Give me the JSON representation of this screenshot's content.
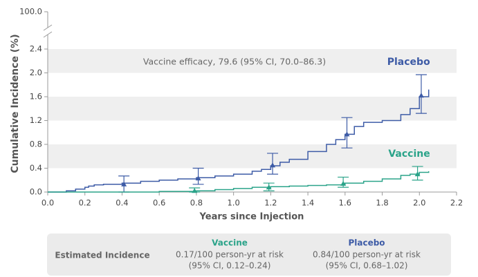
{
  "chart_data": {
    "type": "line",
    "ylabel": "Cumulative Incidence (%)",
    "xlabel": "Years since Injection",
    "annotation": "Vaccine efficacy, 79.6 (95% CI, 70.0–86.3)",
    "xlim": [
      0,
      2.2
    ],
    "xticks": [
      {
        "value": 0,
        "label": "0.0"
      },
      0.2,
      0.4,
      0.6,
      0.8,
      {
        "value": 1,
        "label": "1.0"
      },
      1.2,
      1.4,
      1.6,
      1.8,
      {
        "value": 2,
        "label": "2.0"
      },
      2.2
    ],
    "ylim": [
      0,
      2.4
    ],
    "yticks": [
      {
        "value": 0,
        "label": "0.0"
      },
      0.4,
      0.8,
      1.2,
      1.6,
      {
        "value": 2,
        "label": "2.0"
      },
      2.4,
      {
        "value": 100,
        "label": "100.0"
      }
    ],
    "bands": true,
    "series": [
      {
        "name": "Placebo",
        "color": "#3d5ba6",
        "x": [
          0,
          0.1,
          0.15,
          0.2,
          0.22,
          0.25,
          0.3,
          0.4,
          0.5,
          0.6,
          0.7,
          0.8,
          0.9,
          1.0,
          1.1,
          1.15,
          1.2,
          1.25,
          1.3,
          1.4,
          1.5,
          1.55,
          1.6,
          1.65,
          1.7,
          1.8,
          1.9,
          1.95,
          2.0,
          2.05
        ],
        "values": [
          0,
          0.02,
          0.05,
          0.08,
          0.1,
          0.12,
          0.13,
          0.15,
          0.18,
          0.2,
          0.22,
          0.24,
          0.27,
          0.3,
          0.35,
          0.38,
          0.44,
          0.5,
          0.55,
          0.68,
          0.8,
          0.88,
          0.97,
          1.1,
          1.17,
          1.2,
          1.3,
          1.4,
          1.6,
          1.72
        ],
        "error_bars": {
          "x": [
            0.41,
            0.81,
            1.21,
            1.61,
            2.01
          ],
          "values": [
            0.13,
            0.23,
            0.45,
            0.97,
            1.62
          ],
          "low": [
            0.0,
            0.13,
            0.3,
            0.74,
            1.32
          ],
          "high": [
            0.27,
            0.4,
            0.65,
            1.25,
            1.97
          ]
        }
      },
      {
        "name": "Vaccine",
        "color": "#2aa389",
        "x": [
          0,
          0.4,
          0.6,
          0.8,
          0.9,
          1.0,
          1.1,
          1.2,
          1.3,
          1.4,
          1.5,
          1.6,
          1.7,
          1.8,
          1.9,
          1.95,
          2.0,
          2.05
        ],
        "values": [
          0,
          0,
          0.01,
          0.02,
          0.04,
          0.06,
          0.08,
          0.09,
          0.1,
          0.11,
          0.12,
          0.15,
          0.18,
          0.22,
          0.28,
          0.3,
          0.33,
          0.35
        ],
        "error_bars": {
          "x": [
            0.79,
            1.19,
            1.59,
            1.99
          ],
          "values": [
            0.02,
            0.08,
            0.14,
            0.3
          ],
          "low": [
            0.0,
            0.02,
            0.08,
            0.2
          ],
          "high": [
            0.07,
            0.15,
            0.25,
            0.43
          ]
        }
      }
    ],
    "incidence_table": {
      "label": "Estimated Incidence",
      "columns": [
        {
          "name": "Vaccine",
          "rate": "0.17/100 person-yr at risk",
          "ci": "(95% CI, 0.12–0.24)"
        },
        {
          "name": "Placebo",
          "rate": "0.84/100 person-yr at risk",
          "ci": "(95% CI, 0.68–1.02)"
        }
      ]
    }
  }
}
